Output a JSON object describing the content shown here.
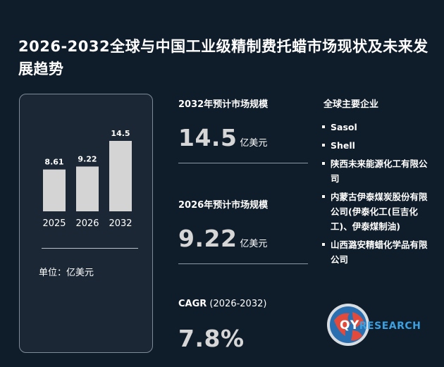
{
  "title": "2026-2032全球与中国工业级精制费托蜡市场现状及未来发展趋势",
  "chart_data": {
    "type": "bar",
    "categories": [
      "2025",
      "2026",
      "2032"
    ],
    "values": [
      8.61,
      9.22,
      14.5
    ],
    "unit_note": "单位：亿美元",
    "bar_color": "#d4d4d4"
  },
  "metrics": {
    "m2032_label": "2032年预计市场规模",
    "m2032_value": "14.5",
    "m2032_unit": "亿美元",
    "m2026_label": "2026年预计市场规模",
    "m2026_value": "9.22",
    "m2026_unit": "亿美元",
    "cagr_label_bold": "CAGR",
    "cagr_label_rest": " (2026-2032)",
    "cagr_value": "7.8%"
  },
  "companies": {
    "title": "全球主要企业",
    "items": [
      "Sasol",
      "Shell",
      "陕西未来能源化工有限公司",
      "内蒙古伊泰煤炭股份有限公司(伊泰化工(巨吉化工)、伊泰煤制油)",
      "山西潞安精蜡化学品有限公司"
    ]
  },
  "logo": {
    "text_q": "QY",
    "text_r": "RESEARCH"
  },
  "colors": {
    "background": "#0f1c2a",
    "accent": "#3aa0e0",
    "bar": "#d4d4d4"
  }
}
